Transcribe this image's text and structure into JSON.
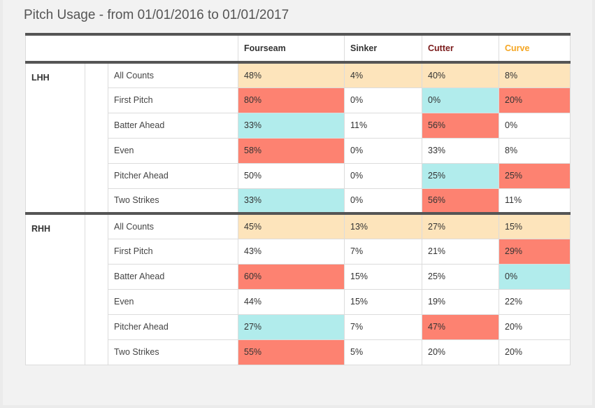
{
  "title": "Pitch Usage - from 01/01/2016 to 01/01/2017",
  "colors": {
    "header_fourseam": "#333333",
    "header_sinker": "#333333",
    "header_cutter": "#7a1a1a",
    "header_curve": "#f5a623",
    "all_counts_bg": "#fde4bb",
    "high_bg": "#fd8271",
    "low_bg": "#b1ecec",
    "divider": "#555555"
  },
  "headers": [
    "Fourseam",
    "Sinker",
    "Cutter",
    "Curve"
  ],
  "groups": [
    {
      "hand": "LHH",
      "rows": [
        {
          "label": "All Counts",
          "values": [
            "48%",
            "4%",
            "40%",
            "8%"
          ],
          "colors": [
            "yellow",
            "yellow",
            "yellow",
            "yellow"
          ]
        },
        {
          "label": "First Pitch",
          "values": [
            "80%",
            "0%",
            "0%",
            "20%"
          ],
          "colors": [
            "red",
            "",
            "blue",
            "red"
          ]
        },
        {
          "label": "Batter Ahead",
          "values": [
            "33%",
            "11%",
            "56%",
            "0%"
          ],
          "colors": [
            "blue",
            "",
            "red",
            ""
          ]
        },
        {
          "label": "Even",
          "values": [
            "58%",
            "0%",
            "33%",
            "8%"
          ],
          "colors": [
            "red",
            "",
            "",
            ""
          ]
        },
        {
          "label": "Pitcher Ahead",
          "values": [
            "50%",
            "0%",
            "25%",
            "25%"
          ],
          "colors": [
            "",
            "",
            "blue",
            "red"
          ]
        },
        {
          "label": "Two Strikes",
          "values": [
            "33%",
            "0%",
            "56%",
            "11%"
          ],
          "colors": [
            "blue",
            "",
            "red",
            ""
          ]
        }
      ]
    },
    {
      "hand": "RHH",
      "rows": [
        {
          "label": "All Counts",
          "values": [
            "45%",
            "13%",
            "27%",
            "15%"
          ],
          "colors": [
            "yellow",
            "yellow",
            "yellow",
            "yellow"
          ]
        },
        {
          "label": "First Pitch",
          "values": [
            "43%",
            "7%",
            "21%",
            "29%"
          ],
          "colors": [
            "",
            "",
            "",
            "red"
          ]
        },
        {
          "label": "Batter Ahead",
          "values": [
            "60%",
            "15%",
            "25%",
            "0%"
          ],
          "colors": [
            "red",
            "",
            "",
            "blue"
          ]
        },
        {
          "label": "Even",
          "values": [
            "44%",
            "15%",
            "19%",
            "22%"
          ],
          "colors": [
            "",
            "",
            "",
            ""
          ]
        },
        {
          "label": "Pitcher Ahead",
          "values": [
            "27%",
            "7%",
            "47%",
            "20%"
          ],
          "colors": [
            "blue",
            "",
            "red",
            ""
          ]
        },
        {
          "label": "Two Strikes",
          "values": [
            "55%",
            "5%",
            "20%",
            "20%"
          ],
          "colors": [
            "red",
            "",
            "",
            ""
          ]
        }
      ]
    }
  ]
}
